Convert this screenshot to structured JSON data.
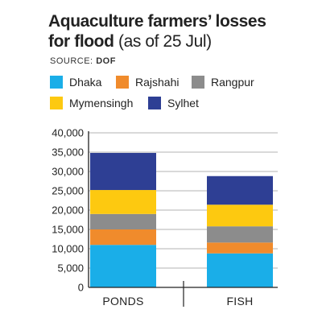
{
  "header": {
    "title_bold": "Aquaculture farmers’ losses for flood",
    "title_rest": "(as of 25 Jul)",
    "source_label": "SOURCE:",
    "source_value": "DOF"
  },
  "chart_data": {
    "type": "bar",
    "stacked": true,
    "categories": [
      "PONDS",
      "FISH"
    ],
    "series": [
      {
        "name": "Dhaka",
        "color": "#1aaee8",
        "values": [
          11000,
          8800
        ]
      },
      {
        "name": "Rajshahi",
        "color": "#f08b2c",
        "values": [
          4000,
          2800
        ]
      },
      {
        "name": "Rangpur",
        "color": "#8c8c8c",
        "values": [
          4000,
          4200
        ]
      },
      {
        "name": "Mymensingh",
        "color": "#fdc910",
        "values": [
          6200,
          5600
        ]
      },
      {
        "name": "Sylhet",
        "color": "#2e3f94",
        "values": [
          9600,
          7400
        ]
      }
    ],
    "ylim": [
      0,
      40000
    ],
    "yticks": [
      "0",
      "5,000",
      "10,000",
      "15,000",
      "20,000",
      "25,000",
      "30,000",
      "35,000",
      "40,000"
    ],
    "grid": true,
    "legend_position": "top"
  }
}
